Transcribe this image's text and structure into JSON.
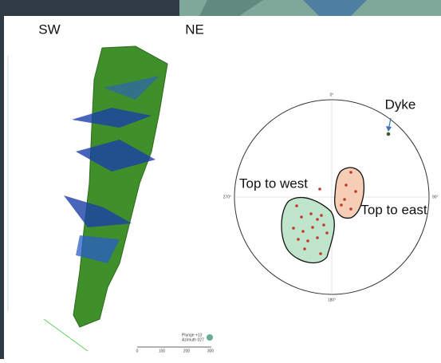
{
  "header": {
    "left": "SW",
    "right": "NE"
  },
  "model": {
    "view": [
      "Plunge +13",
      "Azimuth 027"
    ],
    "scale": [
      "0",
      "100",
      "200",
      "300"
    ]
  },
  "stereonet": {
    "directions": [
      "0°",
      "90°",
      "180°",
      "270°"
    ],
    "labels": {
      "dyke": "Dyke",
      "west": "Top to west",
      "east": "Top to east"
    }
  }
}
